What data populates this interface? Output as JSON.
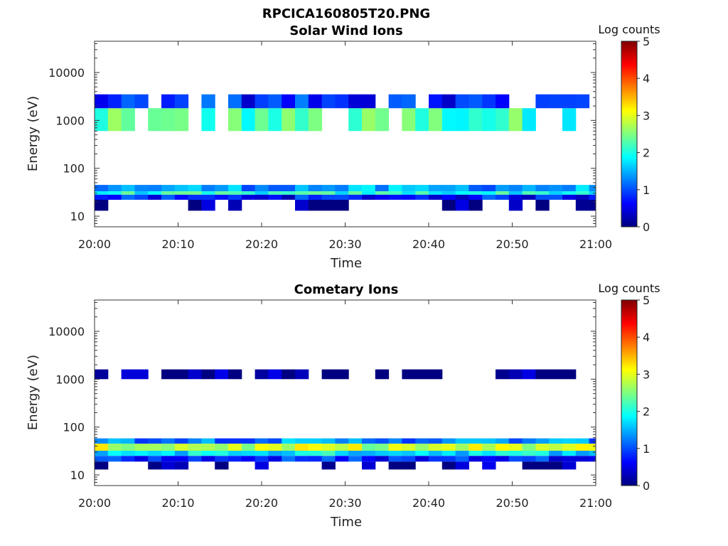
{
  "figure_title": "RPCICA160805T20.PNG",
  "chart_data": [
    {
      "type": "heatmap",
      "title": "Solar Wind Ions",
      "xlabel": "Time",
      "ylabel": "Energy (eV)",
      "x_ticks": [
        "20:00",
        "20:10",
        "20:20",
        "20:30",
        "20:40",
        "20:50",
        "21:00"
      ],
      "y_ticks": [
        "10",
        "100",
        "1000",
        "10000"
      ],
      "y_scale": "log",
      "ylim": [
        6,
        45000
      ],
      "x_range_minutes": [
        0,
        60
      ],
      "colorbar": {
        "label": "Log counts",
        "range": [
          0,
          5
        ],
        "ticks": [
          "0",
          "1",
          "2",
          "3",
          "4",
          "5"
        ]
      },
      "bands": [
        {
          "energy": [
            600,
            1800
          ],
          "level": 2.2
        },
        {
          "energy": [
            1800,
            3500
          ],
          "level": 0.8
        },
        {
          "energy": [
            33,
            45
          ],
          "level": 1.4
        },
        {
          "energy": [
            28,
            33
          ],
          "level": 2.0
        },
        {
          "energy": [
            22,
            28
          ],
          "level": 0.7
        },
        {
          "energy": [
            13,
            22
          ],
          "level": 0.1
        }
      ]
    },
    {
      "type": "heatmap",
      "title": "Cometary Ions",
      "xlabel": "Time",
      "ylabel": "Energy (eV)",
      "x_ticks": [
        "20:00",
        "20:10",
        "20:20",
        "20:30",
        "20:40",
        "20:50",
        "21:00"
      ],
      "y_ticks": [
        "10",
        "100",
        "1000",
        "10000"
      ],
      "y_scale": "log",
      "ylim": [
        6,
        45000
      ],
      "x_range_minutes": [
        0,
        60
      ],
      "colorbar": {
        "label": "Log counts",
        "range": [
          0,
          5
        ],
        "ticks": [
          "0",
          "1",
          "2",
          "3",
          "4",
          "5"
        ]
      },
      "bands": [
        {
          "energy": [
            1000,
            1600
          ],
          "level": 0.1
        },
        {
          "energy": [
            45,
            58
          ],
          "level": 1.3
        },
        {
          "energy": [
            32,
            45
          ],
          "level": 2.8
        },
        {
          "energy": [
            25,
            32
          ],
          "level": 1.8
        },
        {
          "energy": [
            19,
            25
          ],
          "level": 0.8
        },
        {
          "energy": [
            13,
            19
          ],
          "level": 0.1
        }
      ]
    }
  ]
}
